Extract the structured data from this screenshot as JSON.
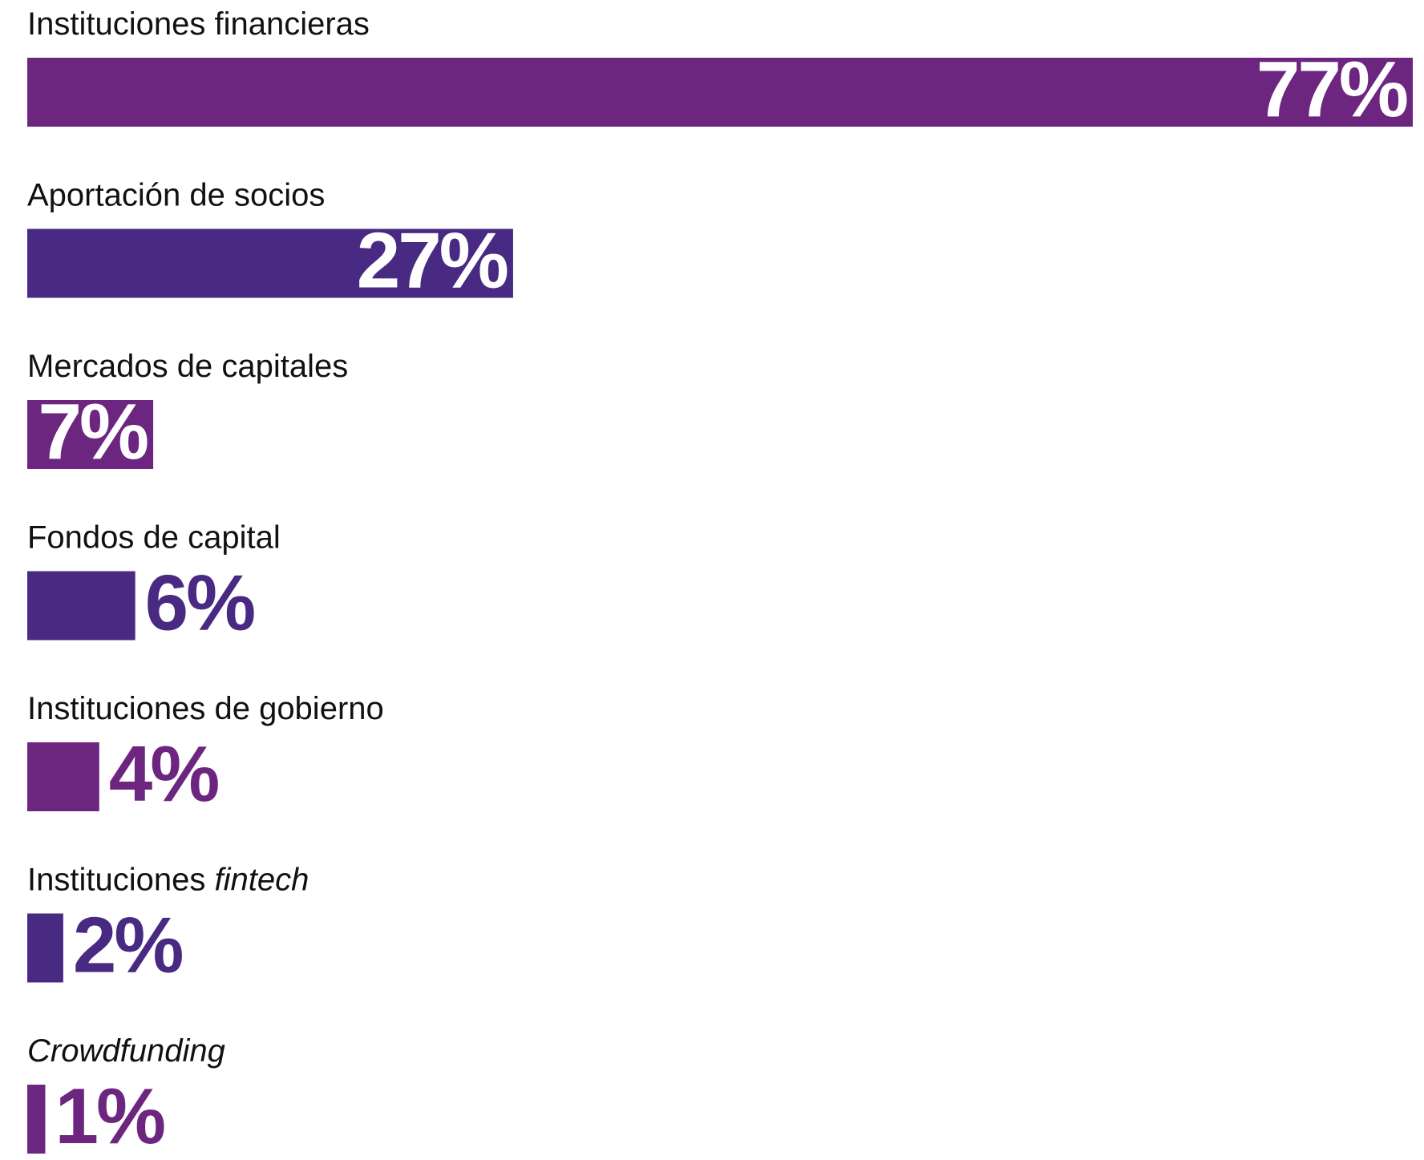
{
  "chart_data": {
    "type": "bar",
    "orientation": "horizontal",
    "categories": [
      "Instituciones financieras",
      "Aportación de socios",
      "Mercados de capitales",
      "Fondos de capital",
      "Instituciones de gobierno",
      "Instituciones fintech",
      "Crowdfunding"
    ],
    "italic_words": [
      "fintech",
      "Crowdfunding"
    ],
    "values": [
      77,
      27,
      7,
      6,
      4,
      2,
      1
    ],
    "value_labels": [
      "77%",
      "27%",
      "7%",
      "6%",
      "4%",
      "2%",
      "1%"
    ],
    "colors": [
      "#6d2680",
      "#482a83",
      "#6d2680",
      "#482a83",
      "#6d2680",
      "#482a83",
      "#6d2680"
    ]
  }
}
